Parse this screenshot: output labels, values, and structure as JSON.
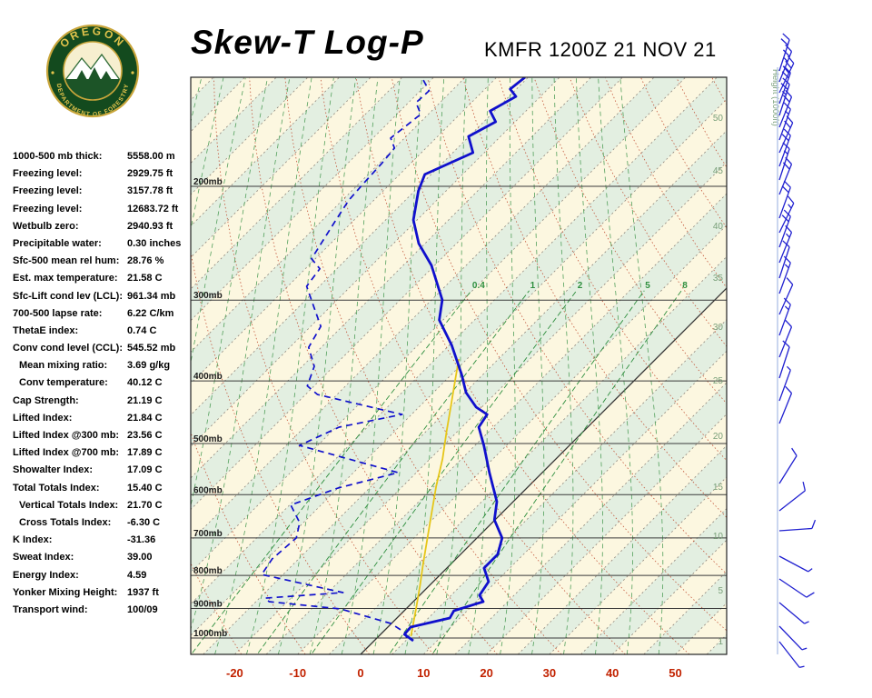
{
  "header": {
    "title": "Skew-T Log-P",
    "station": "KMFR 1200Z 21 NOV 21",
    "logo": {
      "arc_top": "OREGON",
      "arc_bottom": "DEPARTMENT OF FORESTRY"
    }
  },
  "parameters": [
    {
      "label": "1000-500 mb thick:",
      "value": "5558.00 m",
      "indent": false
    },
    {
      "label": "Freezing level:",
      "value": "2929.75 ft",
      "indent": false
    },
    {
      "label": "Freezing level:",
      "value": "3157.78 ft",
      "indent": false
    },
    {
      "label": "Freezing level:",
      "value": "12683.72 ft",
      "indent": false
    },
    {
      "label": "Wetbulb zero:",
      "value": "2940.93 ft",
      "indent": false
    },
    {
      "label": "Precipitable water:",
      "value": "0.30 inches",
      "indent": false
    },
    {
      "label": "Sfc-500 mean rel hum:",
      "value": "28.76 %",
      "indent": false
    },
    {
      "label": "Est. max temperature:",
      "value": "21.58 C",
      "indent": false
    },
    {
      "label": "Sfc-Lift cond lev (LCL):",
      "value": "961.34 mb",
      "indent": false
    },
    {
      "label": "700-500 lapse rate:",
      "value": "6.22 C/km",
      "indent": false
    },
    {
      "label": "ThetaE index:",
      "value": "0.74 C",
      "indent": false
    },
    {
      "label": "Conv cond level (CCL):",
      "value": "545.52 mb",
      "indent": false
    },
    {
      "label": "Mean mixing ratio:",
      "value": "3.69 g/kg",
      "indent": true
    },
    {
      "label": "Conv temperature:",
      "value": "40.12 C",
      "indent": true
    },
    {
      "label": "Cap Strength:",
      "value": "21.19 C",
      "indent": false
    },
    {
      "label": "Lifted Index:",
      "value": "21.84 C",
      "indent": false
    },
    {
      "label": "Lifted Index @300 mb:",
      "value": "23.56 C",
      "indent": false
    },
    {
      "label": "Lifted Index @700 mb:",
      "value": "17.89 C",
      "indent": false
    },
    {
      "label": "Showalter Index:",
      "value": "17.09 C",
      "indent": false
    },
    {
      "label": "Total Totals Index:",
      "value": "15.40 C",
      "indent": false
    },
    {
      "label": "Vertical Totals Index:",
      "value": "21.70 C",
      "indent": true
    },
    {
      "label": "Cross Totals Index:",
      "value": "-6.30 C",
      "indent": true
    },
    {
      "label": "K Index:",
      "value": "-31.36",
      "indent": false
    },
    {
      "label": "Sweat Index:",
      "value": "39.00",
      "indent": false
    },
    {
      "label": "Energy Index:",
      "value": "4.59",
      "indent": false
    },
    {
      "label": "Yonker Mixing Height:",
      "value": "1937 ft",
      "indent": false
    },
    {
      "label": "Transport wind:",
      "value": "100/09",
      "indent": false
    }
  ],
  "chart_data": {
    "type": "skewt_log_p",
    "x_axis": {
      "ticks_c": [
        -20,
        -10,
        0,
        10,
        20,
        30,
        40,
        50
      ],
      "label_color": "#c22200"
    },
    "pressure_levels_mb": [
      200,
      300,
      400,
      500,
      600,
      700,
      800,
      900,
      1000
    ],
    "isotherm_step_c": 5,
    "solid_isotherm_c": 0,
    "dry_adiabats_theta_k": {
      "start": 240,
      "end": 440,
      "step": 10
    },
    "moist_adiabats_c": {
      "start": -60,
      "end": 45,
      "step": 5
    },
    "mixing_ratio_lines_gkg": [
      0.4,
      1,
      2,
      5,
      8
    ],
    "height_axis": {
      "label": "Height (1000ft)",
      "ticks": [
        [
          "50",
          130
        ],
        [
          "45",
          188
        ],
        [
          "40",
          249
        ],
        [
          "35",
          306
        ],
        [
          "30",
          360
        ],
        [
          "25",
          419
        ],
        [
          "20",
          480
        ],
        [
          "15",
          536
        ],
        [
          "10",
          590
        ],
        [
          "5",
          650
        ],
        [
          "1",
          706
        ]
      ]
    },
    "temperature_profile_pT": [
      [
        135.6,
        -65.5
      ],
      [
        141.4,
        -66.0
      ],
      [
        145.2,
        -63.9
      ],
      [
        152.9,
        -65.7
      ],
      [
        158.9,
        -63.1
      ],
      [
        167.4,
        -65.1
      ],
      [
        177.4,
        -61.8
      ],
      [
        191.7,
        -66.0
      ],
      [
        203.3,
        -64.4
      ],
      [
        225.4,
        -60.6
      ],
      [
        245.2,
        -56.0
      ],
      [
        265.1,
        -50.5
      ],
      [
        299.8,
        -43.3
      ],
      [
        322.0,
        -40.6
      ],
      [
        352.4,
        -34.6
      ],
      [
        390.9,
        -28.4
      ],
      [
        417.1,
        -24.8
      ],
      [
        439.3,
        -20.9
      ],
      [
        450.8,
        -18.0
      ],
      [
        471.7,
        -17.3
      ],
      [
        503.4,
        -13.6
      ],
      [
        554.6,
        -8.4
      ],
      [
        615.2,
        -2.6
      ],
      [
        656.4,
        -0.1
      ],
      [
        700.1,
        4.0
      ],
      [
        742.4,
        5.9
      ],
      [
        779.3,
        5.9
      ],
      [
        818.2,
        8.8
      ],
      [
        858.7,
        9.5
      ],
      [
        878.4,
        11.1
      ],
      [
        907.5,
        7.9
      ],
      [
        931.2,
        8.4
      ],
      [
        961.8,
        3.6
      ],
      [
        987.1,
        3.8
      ],
      [
        1009.7,
        6.2
      ]
    ],
    "dewpoint_profile_pT": [
      [
        137.0,
        -81.2
      ],
      [
        142.3,
        -78.6
      ],
      [
        148.4,
        -78.8
      ],
      [
        154.7,
        -76.2
      ],
      [
        168.4,
        -77.2
      ],
      [
        174.5,
        -75.0
      ],
      [
        184.4,
        -74.6
      ],
      [
        198.1,
        -74.3
      ],
      [
        210.0,
        -74.0
      ],
      [
        225.4,
        -72.9
      ],
      [
        242.3,
        -71.7
      ],
      [
        258.9,
        -70.6
      ],
      [
        268.3,
        -67.7
      ],
      [
        285.6,
        -67.0
      ],
      [
        307.8,
        -62.5
      ],
      [
        329.4,
        -58.4
      ],
      [
        355.0,
        -57.0
      ],
      [
        379.8,
        -53.1
      ],
      [
        407.2,
        -51.1
      ],
      [
        419.9,
        -48.1
      ],
      [
        450.8,
        -31.5
      ],
      [
        471.7,
        -39.5
      ],
      [
        503.4,
        -42.9
      ],
      [
        554.6,
        -22.9
      ],
      [
        586.0,
        -30.0
      ],
      [
        622.7,
        -34.8
      ],
      [
        662.8,
        -30.6
      ],
      [
        700.1,
        -28.7
      ],
      [
        754.3,
        -29.2
      ],
      [
        797.5,
        -28.4
      ],
      [
        850.6,
        -12.6
      ],
      [
        867.5,
        -24.1
      ],
      [
        878.4,
        -22.9
      ],
      [
        901.6,
        -10.4
      ],
      [
        949.6,
        -0.1
      ],
      [
        980.8,
        3.6
      ],
      [
        1006.4,
        5.1
      ]
    ],
    "parcel_trace_pT": [
      [
        993.4,
        5.1
      ],
      [
        901.8,
        1.6
      ],
      [
        831.4,
        -1.4
      ],
      [
        766.6,
        -4.5
      ],
      [
        707.0,
        -7.5
      ],
      [
        641.7,
        -11.1
      ],
      [
        582.2,
        -14.7
      ],
      [
        528.4,
        -18.0
      ],
      [
        479.4,
        -21.7
      ],
      [
        435.0,
        -25.3
      ],
      [
        401.3,
        -28.3
      ],
      [
        370.0,
        -31.3
      ]
    ],
    "wind_barbs": [
      [
        78,
        72,
        2,
        0
      ],
      [
        90,
        68,
        2,
        1
      ],
      [
        102,
        64,
        3,
        0
      ],
      [
        114,
        70,
        2,
        0
      ],
      [
        127,
        72,
        2,
        1
      ],
      [
        140,
        68,
        2,
        0
      ],
      [
        154,
        70,
        1,
        1
      ],
      [
        168,
        66,
        2,
        0
      ],
      [
        183,
        70,
        2,
        0
      ],
      [
        198,
        72,
        1,
        1
      ],
      [
        214,
        68,
        2,
        0
      ],
      [
        240,
        70,
        2,
        0
      ],
      [
        256,
        64,
        1,
        1
      ],
      [
        272,
        70,
        2,
        0
      ],
      [
        289,
        68,
        1,
        1
      ],
      [
        306,
        72,
        1,
        0
      ],
      [
        323,
        70,
        1,
        1
      ],
      [
        346,
        66,
        1,
        0
      ],
      [
        369,
        70,
        1,
        1
      ],
      [
        393,
        68,
        1,
        0
      ],
      [
        416,
        72,
        1,
        0
      ],
      [
        441,
        70,
        0,
        1
      ],
      [
        466,
        68,
        1,
        0
      ],
      [
        532,
        58,
        1,
        0
      ],
      [
        562,
        38,
        1,
        0
      ],
      [
        584,
        4,
        1,
        0
      ],
      [
        612,
        -28,
        0,
        1
      ],
      [
        637,
        -34,
        1,
        0
      ],
      [
        663,
        -40,
        0,
        1
      ],
      [
        689,
        -46,
        0,
        1
      ],
      [
        706,
        -52,
        0,
        1
      ]
    ],
    "colors": {
      "band_cream": "#fcf7e0",
      "band_green": "#e3efe1",
      "grid": "#3a3a3a",
      "isotherm": "#8f857a",
      "isotherm_solid": "#333333",
      "dry_adiabat": "#c2553a",
      "moist_adiabat": "#53a05c",
      "mixing_ratio": "#2f8f3f",
      "temperature_line": "#1010cc",
      "dewpoint_line": "#1010cc",
      "parcel_line": "#e6c619",
      "height_ticks": "#7aa07a",
      "wind_barbs": "#2020d0",
      "pressure_labels": "#1a1a1a"
    }
  }
}
